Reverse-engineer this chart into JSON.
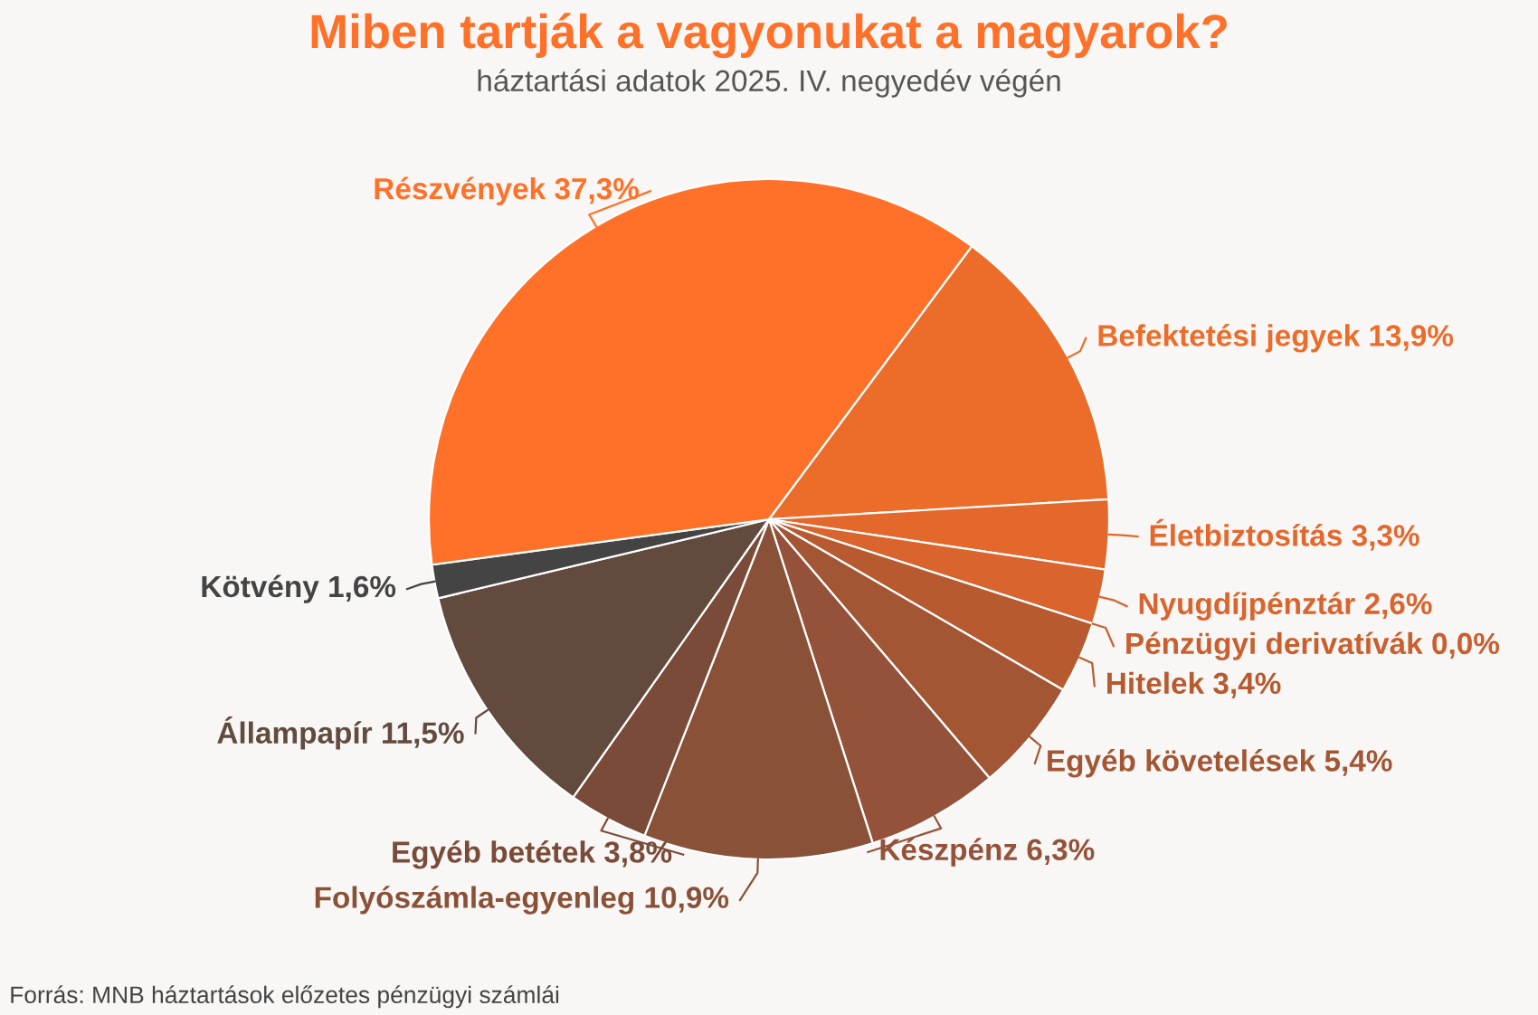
{
  "chart_data": {
    "type": "pie",
    "title": "Miben tartják a vagyonukat a magyarok?",
    "subtitle": "háztartási adatok 2025. IV. negyedév végén",
    "categories": [
      "Befektetési jegyek",
      "Életbiztosítás",
      "Nyugdíjpénztár",
      "Pénzügyi derivatívák",
      "Hitelek",
      "Egyéb követelések",
      "Készpénz",
      "Folyószámla-egyenleg",
      "Egyéb betétek",
      "Állampapír",
      "Kötvény",
      "Részvények"
    ],
    "values": [
      13.9,
      3.3,
      2.6,
      0.0,
      3.4,
      5.4,
      6.3,
      10.9,
      3.8,
      11.5,
      1.6,
      37.3
    ],
    "value_labels": [
      "13,9%",
      "3,3%",
      "2,6%",
      "0,0%",
      "3,4%",
      "5,4%",
      "6,3%",
      "10,9%",
      "3,8%",
      "11,5%",
      "1,6%",
      "37,3%"
    ],
    "colors": [
      "#ec6c2a",
      "#e4672c",
      "#d9642e",
      "#c95f2f",
      "#b75a30",
      "#a35634",
      "#94523a",
      "#8a5139",
      "#7a4b38",
      "#634a3e",
      "#444444",
      "#ff7028"
    ],
    "annotations": [
      "Forrás: MNB háztartások előzetes pénzügyi számlái"
    ]
  }
}
